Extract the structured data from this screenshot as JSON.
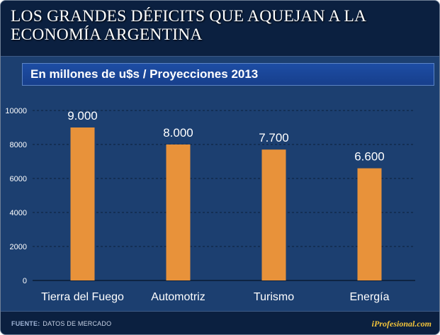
{
  "header": {
    "title": "LOS GRANDES DÉFICITS QUE AQUEJAN A LA ECONOMÍA ARGENTINA"
  },
  "subtitle": "En millones de u$s / Proyecciones 2013",
  "chart_data": {
    "type": "bar",
    "title": "LOS GRANDES DÉFICITS QUE AQUEJAN A LA ECONOMÍA ARGENTINA",
    "subtitle": "En millones de u$s / Proyecciones 2013",
    "categories": [
      "Tierra del Fuego",
      "Automotriz",
      "Turismo",
      "Energía"
    ],
    "values": [
      9000,
      8000,
      7700,
      6600
    ],
    "data_labels": [
      "9.000",
      "8.000",
      "7.700",
      "6.600"
    ],
    "yticks": [
      0,
      2000,
      4000,
      6000,
      8000,
      10000
    ],
    "ylim": [
      0,
      10000
    ],
    "xlabel": "",
    "ylabel": "",
    "grid": true,
    "bar_color": "#e8923a"
  },
  "footer": {
    "source_label": "FUENTE:",
    "source_text": "DATOS DE MERCADO",
    "brand": "iProfesional.com"
  }
}
